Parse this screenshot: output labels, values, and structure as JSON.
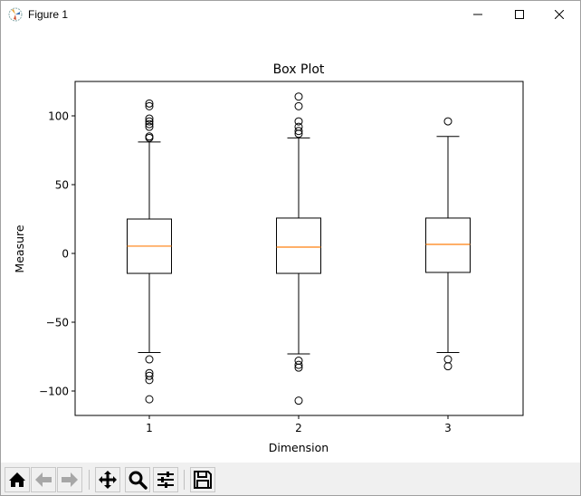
{
  "window": {
    "title": "Figure 1",
    "controls": [
      "minimize",
      "maximize",
      "close"
    ]
  },
  "toolbar": {
    "buttons": [
      {
        "name": "home",
        "icon": "home-icon",
        "enabled": true
      },
      {
        "name": "back",
        "icon": "arrow-left-icon",
        "enabled": false
      },
      {
        "name": "forward",
        "icon": "arrow-right-icon",
        "enabled": false
      },
      {
        "name": "pan",
        "icon": "move-icon",
        "enabled": true
      },
      {
        "name": "zoom",
        "icon": "magnifier-icon",
        "enabled": true
      },
      {
        "name": "configure-subplots",
        "icon": "sliders-icon",
        "enabled": true
      },
      {
        "name": "save",
        "icon": "floppy-disk-icon",
        "enabled": true
      }
    ]
  },
  "colors": {
    "median": "#ff7f0e",
    "box": "#000000",
    "background": "#ffffff",
    "toolbar": "#f0f0f0"
  },
  "chart_data": {
    "type": "box",
    "title": "Box Plot",
    "xlabel": "Dimension",
    "ylabel": "Measure",
    "categories": [
      "1",
      "2",
      "3"
    ],
    "ylim": [
      -118,
      125
    ],
    "yticks": [
      -100,
      -50,
      0,
      50,
      100
    ],
    "yticklabels": [
      "−100",
      "−50",
      "0",
      "50",
      "100"
    ],
    "grid": false,
    "series": [
      {
        "name": "1",
        "whisker_low": -72,
        "q1": -14.5,
        "median": 5.3,
        "q3": 25,
        "whisker_high": 81,
        "outliers": [
          109,
          107,
          98,
          96,
          94,
          92,
          85,
          84,
          -77,
          -87,
          -89,
          -92,
          -106
        ]
      },
      {
        "name": "2",
        "whisker_low": -73,
        "q1": -14.5,
        "median": 4.6,
        "q3": 25.7,
        "whisker_high": 84,
        "outliers": [
          114,
          107,
          96,
          92,
          89,
          87,
          -78,
          -81,
          -83,
          -107
        ]
      },
      {
        "name": "3",
        "whisker_low": -72,
        "q1": -13.8,
        "median": 6.6,
        "q3": 25.7,
        "whisker_high": 85,
        "outliers": [
          96,
          -77,
          -82
        ]
      }
    ]
  }
}
